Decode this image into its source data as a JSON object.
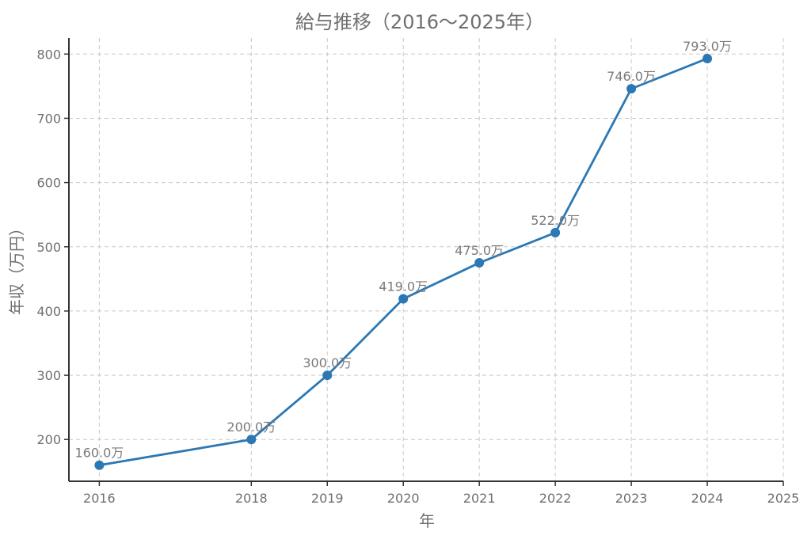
{
  "chart_data": {
    "type": "line",
    "title": "給与推移（2016〜2025年）",
    "xlabel": "年",
    "ylabel": "年収（万円）",
    "x": [
      2016,
      2018,
      2019,
      2020,
      2021,
      2022,
      2023,
      2024
    ],
    "values": [
      160.0,
      200.0,
      300.0,
      419.0,
      475.0,
      522.0,
      746.0,
      793.0
    ],
    "data_labels": [
      "160.0万",
      "200.0万",
      "300.0万",
      "419.0万",
      "475.0万",
      "522.0万",
      "746.0万",
      "793.0万"
    ],
    "x_ticks": [
      2016,
      2018,
      2019,
      2020,
      2021,
      2022,
      2023,
      2024,
      2025
    ],
    "y_ticks": [
      200,
      300,
      400,
      500,
      600,
      700,
      800
    ],
    "xlim": [
      2015.6,
      2025
    ],
    "ylim": [
      135,
      825
    ],
    "grid": true,
    "line_color": "#2b78b4",
    "marker_color": "#2b78b4"
  }
}
